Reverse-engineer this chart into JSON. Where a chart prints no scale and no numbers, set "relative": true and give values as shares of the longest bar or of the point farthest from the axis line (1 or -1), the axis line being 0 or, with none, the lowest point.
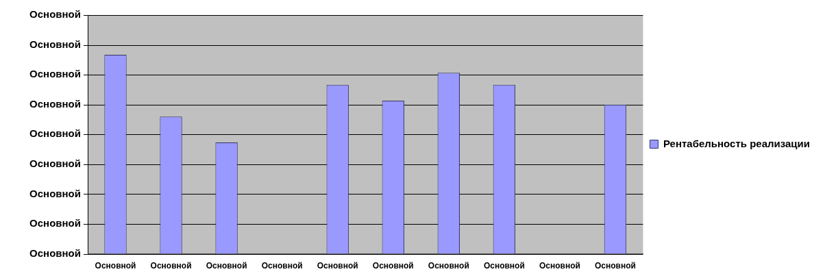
{
  "chart_data": {
    "type": "bar",
    "relative": true,
    "categories": [
      "Основной",
      "Основной",
      "Основной",
      "Основной",
      "Основной",
      "Основной",
      "Основной",
      "Основной",
      "Основной",
      "Основной"
    ],
    "series": [
      {
        "name": "Рентабельность реализации",
        "color": "#9999ff",
        "values": [
          1,
          0.69,
          0.56,
          null,
          0.85,
          0.77,
          0.91,
          0.85,
          null,
          0.75
        ]
      }
    ],
    "annotations": [
      "Основной",
      "Основной",
      "Основной",
      "Основной",
      "Основной",
      "Основной",
      "Основной",
      "Основной",
      "Основной"
    ],
    "legend": "right"
  }
}
